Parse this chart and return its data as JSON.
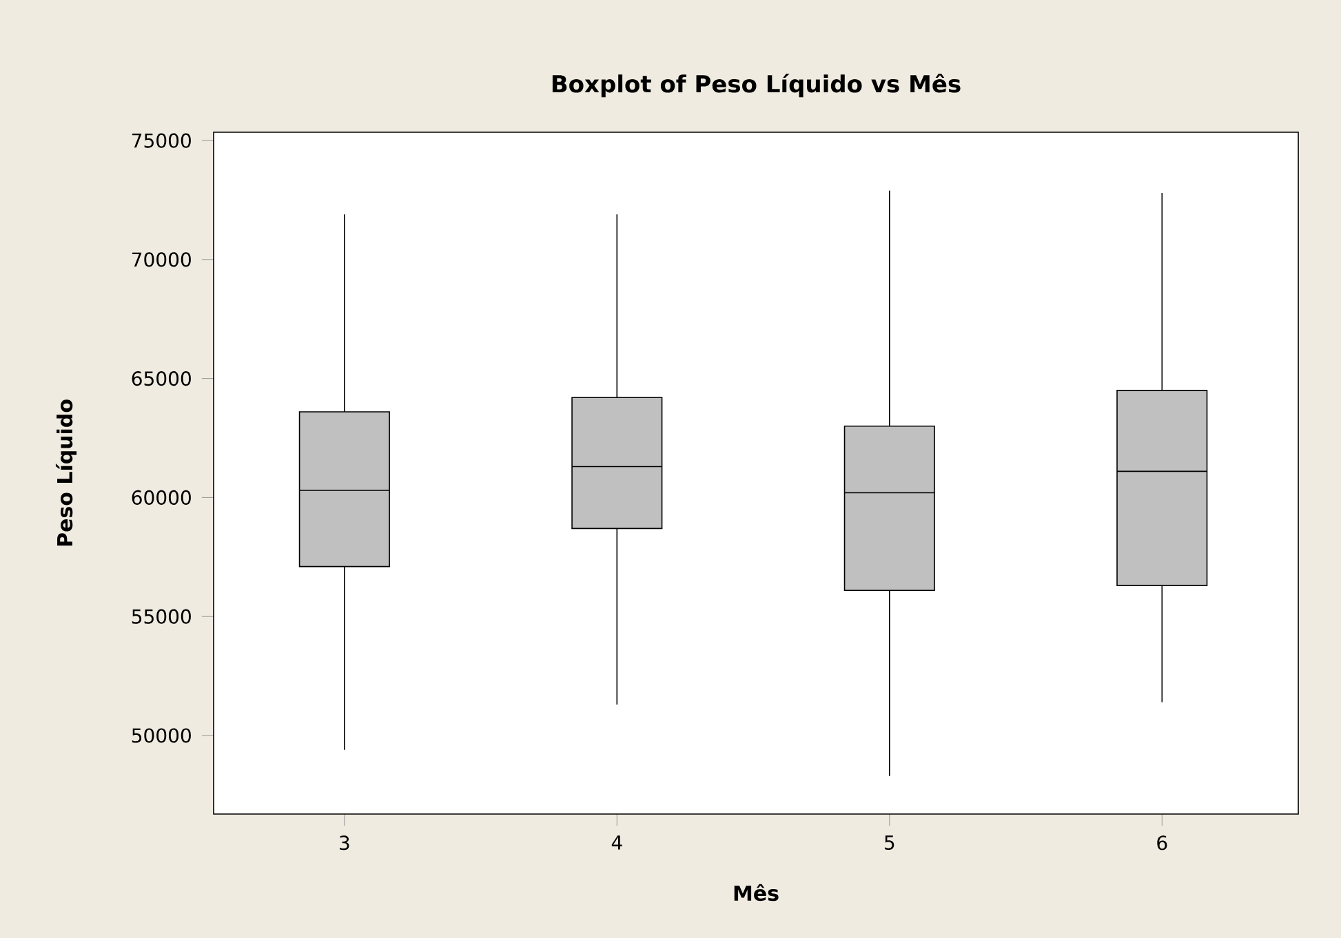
{
  "chart_data": {
    "type": "box",
    "title": "Boxplot of Peso Líquido vs Mês",
    "xlabel": "Mês",
    "ylabel": "Peso Líquido",
    "categories": [
      "3",
      "4",
      "5",
      "6"
    ],
    "boxes": [
      {
        "low": 49400,
        "q1": 57100,
        "median": 60300,
        "q3": 63600,
        "high": 71900
      },
      {
        "low": 51300,
        "q1": 58700,
        "median": 61300,
        "q3": 64200,
        "high": 71900
      },
      {
        "low": 48300,
        "q1": 56100,
        "median": 60200,
        "q3": 63000,
        "high": 72900
      },
      {
        "low": 51400,
        "q1": 56300,
        "median": 61100,
        "q3": 64500,
        "high": 72800
      }
    ],
    "color": "#c0c0c0",
    "ylim": [
      46700,
      75350
    ],
    "yticks": [
      50000,
      55000,
      60000,
      65000,
      70000,
      75000
    ]
  }
}
